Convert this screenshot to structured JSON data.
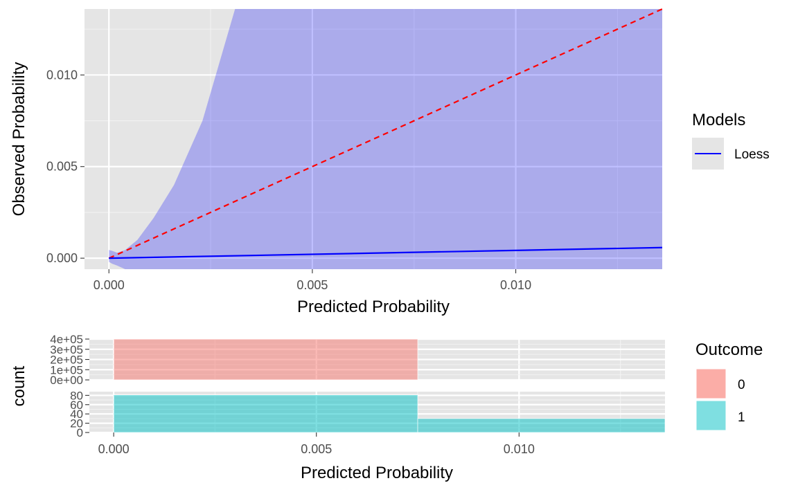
{
  "chart_data": [
    {
      "type": "line",
      "xlabel": "Predicted Probability",
      "ylabel": "Observed Probability",
      "xlim": [
        -0.0006,
        0.0136
      ],
      "ylim": [
        -0.0006,
        0.0136
      ],
      "x_ticks": [
        0.0,
        0.005,
        0.01
      ],
      "x_tick_labels": [
        "0.000",
        "0.005",
        "0.010"
      ],
      "y_ticks": [
        0.0,
        0.005,
        0.01
      ],
      "y_tick_labels": [
        "0.000",
        "0.005",
        "0.010"
      ],
      "grid": true,
      "legend": {
        "title": "Models",
        "position": "right",
        "entries": [
          "Loess"
        ]
      },
      "series": [
        {
          "name": "Loess",
          "color": "#0000ff",
          "x": [
            0.0,
            0.0136
          ],
          "y": [
            0.0,
            0.00058
          ]
        }
      ],
      "reference_line": {
        "x": [
          0.0,
          0.0136
        ],
        "y": [
          0.0,
          0.0136
        ],
        "color": "#ff0000",
        "style": "dashed"
      },
      "confidence_band": {
        "color": "#0000ff",
        "opacity": 0.25,
        "x": [
          0.0,
          8e-05,
          0.0002,
          0.0004,
          0.0007,
          0.0011,
          0.0016,
          0.0023,
          0.0031,
          0.0136
        ],
        "upper": [
          0.00045,
          0.0004,
          0.0003,
          0.00045,
          0.001,
          0.0022,
          0.004,
          0.0075,
          0.0136,
          0.0136
        ],
        "lower": [
          -0.0002,
          -0.0003,
          -0.0004,
          -0.0006,
          -0.0006,
          -0.0006,
          -0.0006,
          -0.0006,
          -0.0006,
          -0.0006
        ]
      }
    },
    {
      "type": "bar",
      "facet": "0",
      "xlabel": "Predicted Probability",
      "ylabel": "count",
      "xlim": [
        -0.0006,
        0.0136
      ],
      "ylim": [
        0,
        400000
      ],
      "y_ticks": [
        0,
        100000,
        200000,
        300000,
        400000
      ],
      "y_tick_labels": [
        "0e+00",
        "1e+05",
        "2e+05",
        "3e+05",
        "4e+05"
      ],
      "bins": [
        {
          "x0": 0.0,
          "x1": 0.0075,
          "count": 400000
        }
      ],
      "color": "#f8766d"
    },
    {
      "type": "bar",
      "facet": "1",
      "xlabel": "Predicted Probability",
      "ylabel": "count",
      "xlim": [
        -0.0006,
        0.0136
      ],
      "ylim": [
        0,
        88
      ],
      "x_ticks": [
        0.0,
        0.005,
        0.01
      ],
      "x_tick_labels": [
        "0.000",
        "0.005",
        "0.010"
      ],
      "y_ticks": [
        0,
        20,
        40,
        60,
        80
      ],
      "y_tick_labels": [
        "0",
        "20",
        "40",
        "60",
        "80"
      ],
      "bins": [
        {
          "x0": 0.0,
          "x1": 0.0075,
          "count": 81
        },
        {
          "x0": 0.0075,
          "x1": 0.0136,
          "count": 30
        }
      ],
      "color": "#00bfc4"
    }
  ],
  "histogram_legend": {
    "title": "Outcome",
    "entries": [
      {
        "label": "0",
        "color": "#f8766d"
      },
      {
        "label": "1",
        "color": "#00bfc4"
      }
    ]
  }
}
